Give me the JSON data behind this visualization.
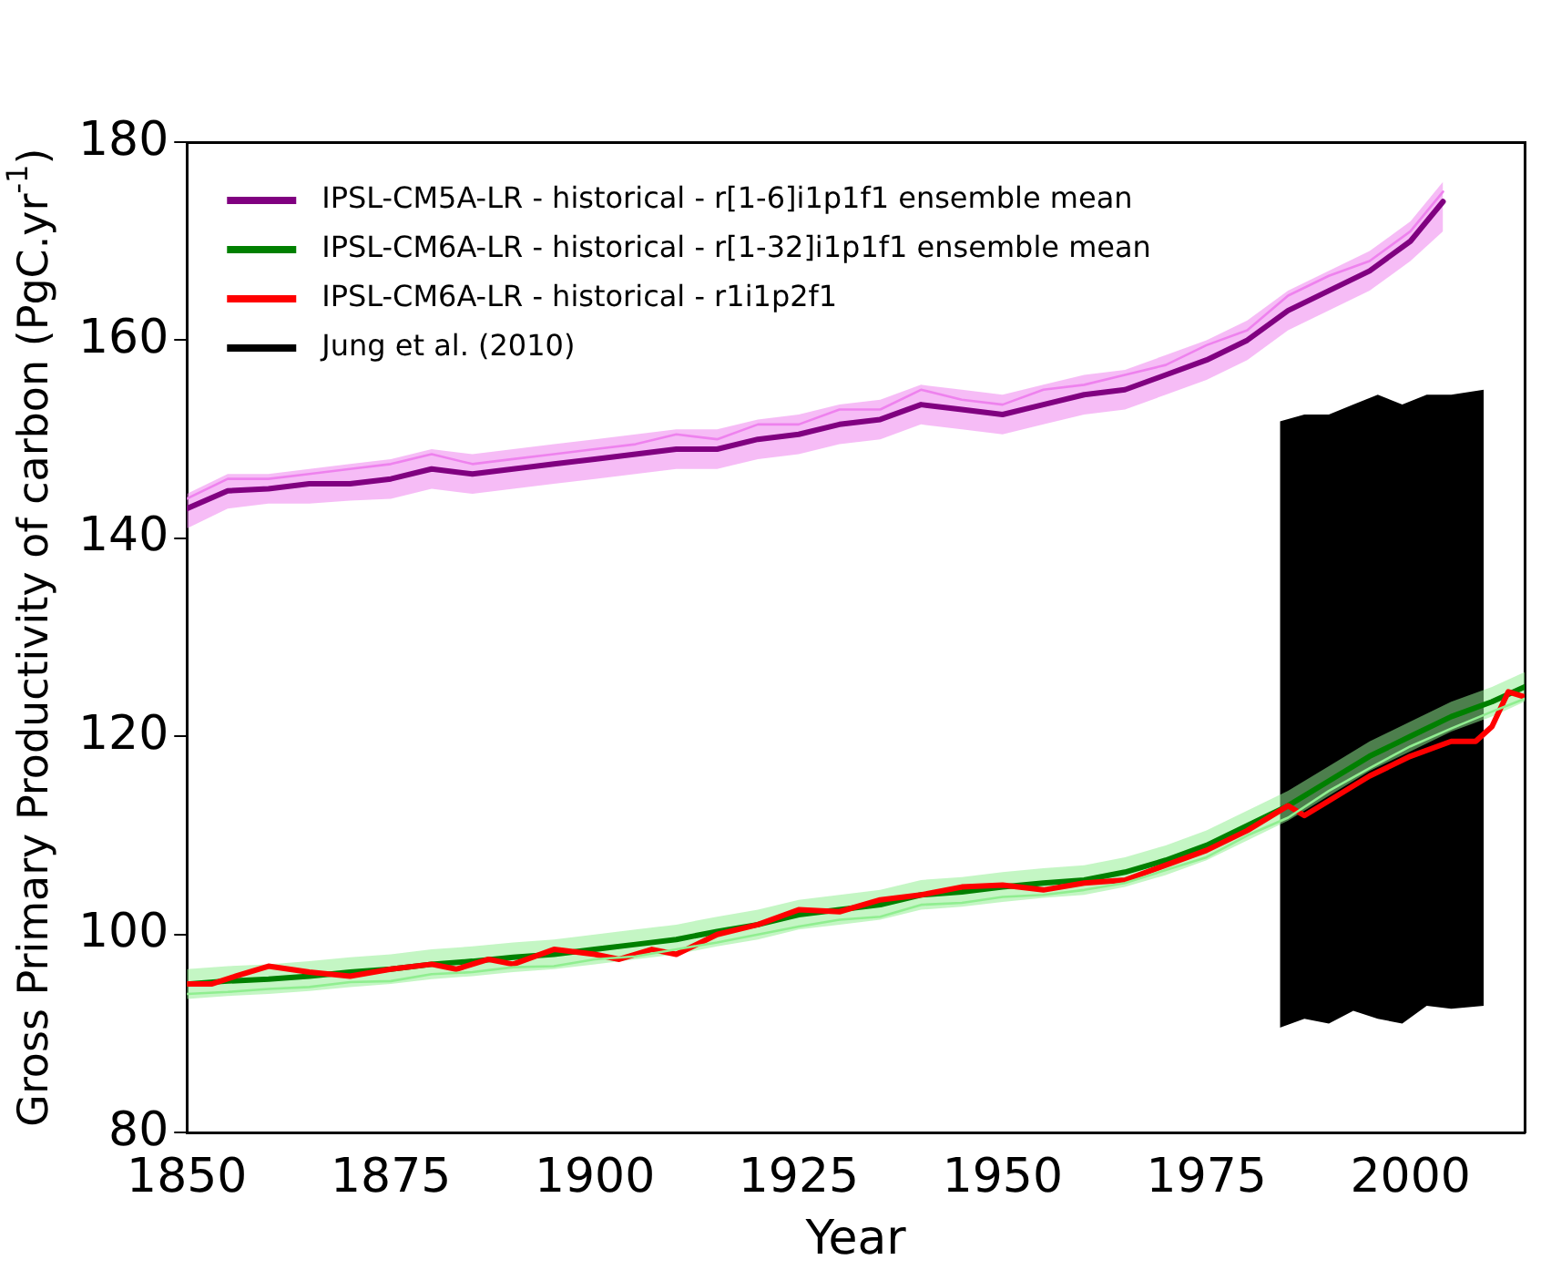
{
  "chart_data": {
    "type": "line",
    "xlabel": "Year",
    "ylabel": "Gross Primary Productivity of carbon (PgC.yr$^{-1}$)",
    "xlim": [
      1850,
      2014
    ],
    "xticks": [
      1850,
      1875,
      1900,
      1925,
      1950,
      1975,
      2000
    ],
    "ylim": [
      80,
      180
    ],
    "yticks": [
      80,
      100,
      120,
      140,
      160,
      180
    ],
    "legend": "top left",
    "grid": false,
    "series": [
      {
        "name": "IPSL-CM5A-LR - historical - r[1-6]i1p1f1 ensemble mean",
        "color": "#800080",
        "x": [
          1850,
          1855,
          1860,
          1865,
          1870,
          1875,
          1880,
          1885,
          1890,
          1895,
          1900,
          1905,
          1910,
          1915,
          1920,
          1925,
          1930,
          1935,
          1940,
          1945,
          1950,
          1955,
          1960,
          1965,
          1970,
          1975,
          1980,
          1985,
          1990,
          1995,
          2000,
          2004
        ],
        "values": [
          143,
          144.8,
          145,
          145.5,
          145.5,
          146,
          147,
          146.5,
          147,
          147.5,
          148,
          148.5,
          149,
          149,
          150,
          150.5,
          151.5,
          152,
          153.5,
          153,
          152.5,
          153.5,
          154.5,
          155,
          156.5,
          158,
          160,
          163,
          165,
          167,
          170,
          174
        ]
      },
      {
        "name": "IPSL-CM6A-LR - historical - r[1-32]i1p1f1 ensemble mean",
        "color": "#008000",
        "x": [
          1850,
          1855,
          1860,
          1865,
          1870,
          1875,
          1880,
          1885,
          1890,
          1895,
          1900,
          1905,
          1910,
          1915,
          1920,
          1925,
          1930,
          1935,
          1940,
          1945,
          1950,
          1955,
          1960,
          1965,
          1970,
          1975,
          1980,
          1985,
          1990,
          1995,
          2000,
          2005,
          2010,
          2014
        ],
        "values": [
          95,
          95.3,
          95.5,
          95.8,
          96.2,
          96.5,
          97,
          97.3,
          97.7,
          98,
          98.5,
          99,
          99.5,
          100.3,
          101,
          102,
          102.5,
          103,
          104,
          104.3,
          104.8,
          105.2,
          105.5,
          106.3,
          107.5,
          109,
          111,
          113,
          115.5,
          118,
          120,
          122,
          123.5,
          125
        ]
      },
      {
        "name": "IPSL-CM6A-LR - historical - r1i1p2f1",
        "color": "#ff0000",
        "x": [
          1850,
          1853,
          1856,
          1860,
          1865,
          1870,
          1875,
          1880,
          1883,
          1887,
          1890,
          1895,
          1900,
          1903,
          1907,
          1910,
          1915,
          1920,
          1925,
          1930,
          1935,
          1940,
          1945,
          1950,
          1955,
          1960,
          1965,
          1970,
          1975,
          1980,
          1985,
          1987,
          1990,
          1995,
          2000,
          2005,
          2008,
          2010,
          2012,
          2014
        ],
        "values": [
          95,
          95,
          95.8,
          96.8,
          96.2,
          95.8,
          96.5,
          97,
          96.5,
          97.5,
          97,
          98.5,
          98,
          97.5,
          98.5,
          98,
          100,
          101,
          102.5,
          102.3,
          103.5,
          104,
          104.8,
          105,
          104.5,
          105.2,
          105.5,
          107,
          108.5,
          110.5,
          113,
          112,
          113.5,
          116,
          118,
          119.5,
          119.5,
          121,
          124.5,
          124
        ]
      },
      {
        "name": "Jung et al. (2010)",
        "color": "#000000",
        "x": [
          1984,
          1987,
          1990,
          1993,
          1996,
          1999,
          2002,
          2005,
          2009
        ],
        "values": [
          null,
          null,
          null,
          null,
          null,
          null,
          null,
          null,
          null
        ],
        "lower": [
          90.6,
          91.5,
          91,
          92.3,
          91.5,
          91,
          92.8,
          92.5,
          92.8
        ],
        "upper": [
          151.8,
          152.5,
          152.5,
          153.5,
          154.5,
          153.5,
          154.5,
          154.5,
          155
        ]
      },
      {
        "color": "#ee82ee",
        "x": [
          1850,
          1855,
          1860,
          1865,
          1870,
          1875,
          1880,
          1885,
          1890,
          1895,
          1900,
          1905,
          1910,
          1915,
          1920,
          1925,
          1930,
          1935,
          1940,
          1945,
          1950,
          1955,
          1960,
          1965,
          1970,
          1975,
          1980,
          1985,
          1990,
          1995,
          2000,
          2004
        ],
        "values": [
          144,
          146,
          146,
          146.5,
          147,
          147.5,
          148.5,
          147.5,
          148,
          148.5,
          149,
          149.5,
          150.5,
          150,
          151.5,
          151.5,
          153,
          153,
          155,
          154,
          153.5,
          155,
          155.5,
          156.5,
          157.5,
          159.5,
          161,
          164.5,
          166.5,
          168,
          171,
          175
        ],
        "lower": [
          141,
          143,
          143.5,
          143.5,
          143.8,
          144,
          145,
          144.5,
          145,
          145.5,
          146,
          146.5,
          147,
          147,
          148,
          148.5,
          149.5,
          150,
          151.5,
          151,
          150.5,
          151.5,
          152.5,
          153,
          154.5,
          156,
          158,
          161,
          163,
          165,
          168,
          171
        ],
        "upper": [
          144.5,
          146.5,
          146.5,
          147,
          147.5,
          148,
          149,
          148.5,
          149,
          149.5,
          150,
          150.5,
          151,
          151,
          152,
          152.5,
          153.5,
          154,
          155.5,
          155,
          154.5,
          155.5,
          156.5,
          157,
          158.5,
          160,
          162,
          165,
          167,
          169,
          172,
          176
        ]
      },
      {
        "color": "#90ee90",
        "x": [
          1850,
          1855,
          1860,
          1865,
          1870,
          1875,
          1880,
          1885,
          1890,
          1895,
          1900,
          1905,
          1910,
          1915,
          1920,
          1925,
          1930,
          1935,
          1940,
          1945,
          1950,
          1955,
          1960,
          1965,
          1970,
          1975,
          1980,
          1985,
          1990,
          1995,
          2000,
          2005,
          2010,
          2014
        ],
        "values": [
          94,
          94.2,
          94.5,
          94.7,
          95.2,
          95.3,
          96,
          96.2,
          96.7,
          96.8,
          97.5,
          97.8,
          98.5,
          99.2,
          100,
          100.8,
          101.5,
          101.8,
          103,
          103.2,
          103.8,
          104,
          104.5,
          105.2,
          106.5,
          107.8,
          110,
          111.8,
          114.5,
          116.8,
          119,
          120.8,
          122.5,
          123.8
        ],
        "lower": [
          93.5,
          93.8,
          94,
          94.3,
          94.7,
          95,
          95.5,
          95.8,
          96.2,
          96.5,
          97,
          97.5,
          98,
          98.8,
          99.5,
          100.5,
          101,
          101.5,
          102.5,
          102.8,
          103.3,
          103.7,
          104,
          104.8,
          106,
          107.5,
          109.5,
          111.5,
          114,
          116.5,
          118.5,
          120.5,
          122,
          123.5
        ],
        "upper": [
          96.5,
          96.8,
          97,
          97.3,
          97.7,
          98,
          98.5,
          98.8,
          99.2,
          99.5,
          100,
          100.5,
          101,
          101.8,
          102.5,
          103.5,
          104,
          104.5,
          105.5,
          105.8,
          106.3,
          106.7,
          107,
          107.8,
          109,
          110.5,
          112.5,
          114.5,
          117,
          119.5,
          121.5,
          123.5,
          125,
          126.5
        ]
      }
    ]
  }
}
